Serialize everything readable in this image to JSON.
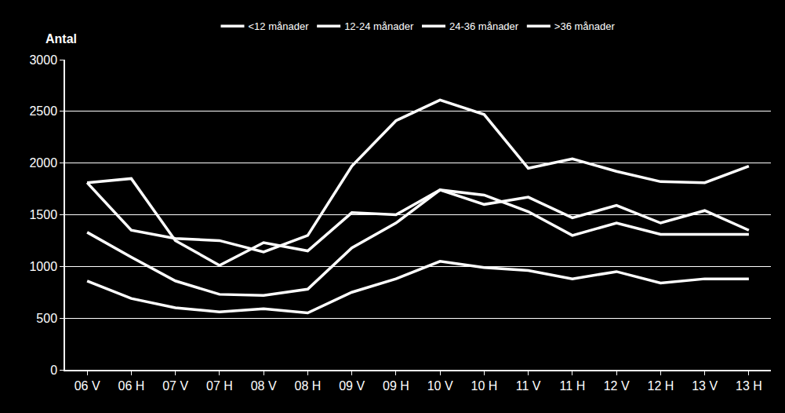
{
  "chart_data": {
    "type": "line",
    "y_label": "Antal",
    "categories": [
      "06 V",
      "06 H",
      "07 V",
      "07 H",
      "08 V",
      "08 H",
      "09 V",
      "09 H",
      "10 V",
      "10 H",
      "11 V",
      "11 H",
      "12 V",
      "12 H",
      "13 V",
      "13 H"
    ],
    "series": [
      {
        "name": "<12 månader",
        "color": "#ffffff",
        "values": [
          1810,
          1350,
          1270,
          1250,
          1140,
          1300,
          1970,
          2410,
          2610,
          2470,
          1950,
          2040,
          1920,
          1820,
          1810,
          1970
        ]
      },
      {
        "name": "12-24 månader",
        "color": "#ffffff",
        "values": [
          1810,
          1850,
          1250,
          1010,
          1230,
          1150,
          1520,
          1500,
          1740,
          1690,
          1530,
          1300,
          1420,
          1310,
          1310,
          1310
        ]
      },
      {
        "name": "24-36 månader",
        "color": "#ffffff",
        "values": [
          1330,
          1090,
          860,
          730,
          720,
          780,
          1180,
          1420,
          1740,
          1600,
          1670,
          1470,
          1590,
          1420,
          1540,
          1350
        ]
      },
      {
        "name": ">36 månader",
        "color": "#ffffff",
        "values": [
          860,
          690,
          600,
          560,
          590,
          550,
          750,
          880,
          1050,
          990,
          960,
          880,
          950,
          840,
          880,
          880
        ]
      }
    ],
    "ylim": [
      0,
      3000
    ],
    "yticks": [
      0,
      500,
      1000,
      1500,
      2000,
      2500,
      3000
    ],
    "grid": true,
    "legend": "top"
  }
}
